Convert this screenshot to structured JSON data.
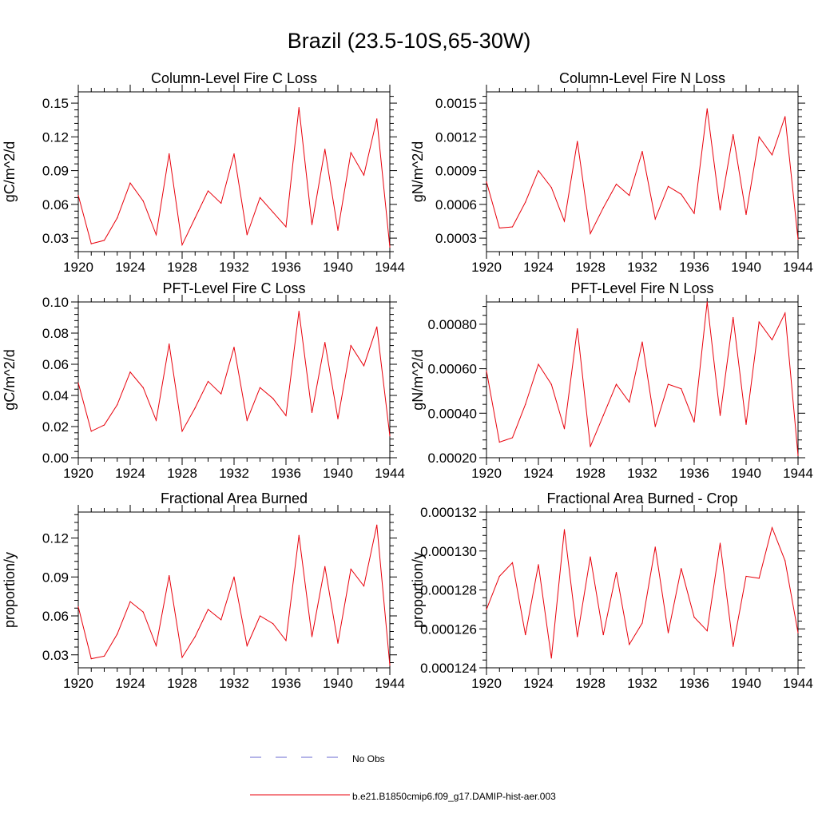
{
  "page_title": "Brazil (23.5-10S,65-30W)",
  "legend": [
    {
      "label": "No Obs",
      "color": "#6a6ad0",
      "style": "dashed"
    },
    {
      "label": "b.e21.B1850cmip6.f09_g17.DAMIP-hist-aer.003",
      "color": "#e8000b",
      "style": "solid"
    }
  ],
  "colors": {
    "series": "#e8000b",
    "axis": "#000000"
  },
  "chart_data": [
    {
      "type": "line",
      "title": "Column-Level Fire C Loss",
      "ylabel": "gC/m^2/d",
      "xlim": [
        1920,
        1944
      ],
      "ylim": [
        0.018,
        0.16
      ],
      "xticks": [
        1920,
        1924,
        1928,
        1932,
        1936,
        1940,
        1944
      ],
      "xtick_labels": [
        "1920",
        "1924",
        "1928",
        "1932",
        "1936",
        "1940",
        "1944"
      ],
      "yticks": [
        0.03,
        0.06,
        0.09,
        0.12,
        0.15
      ],
      "ytick_labels": [
        "0.03",
        "0.06",
        "0.09",
        "0.12",
        "0.15"
      ],
      "x": [
        1920,
        1921,
        1922,
        1923,
        1924,
        1925,
        1926,
        1927,
        1928,
        1929,
        1930,
        1931,
        1932,
        1933,
        1934,
        1935,
        1936,
        1937,
        1938,
        1939,
        1940,
        1941,
        1942,
        1943,
        1944
      ],
      "series": [
        {
          "values": [
            0.068,
            0.025,
            0.028,
            0.048,
            0.079,
            0.063,
            0.033,
            0.105,
            0.024,
            0.048,
            0.072,
            0.061,
            0.105,
            0.033,
            0.066,
            0.053,
            0.04,
            0.146,
            0.042,
            0.109,
            0.037,
            0.106,
            0.086,
            0.136,
            0.022
          ]
        }
      ]
    },
    {
      "type": "line",
      "title": "Column-Level Fire N Loss",
      "ylabel": "gN/m^2/d",
      "xlim": [
        1920,
        1944
      ],
      "ylim": [
        0.00018,
        0.0016
      ],
      "xticks": [
        1920,
        1924,
        1928,
        1932,
        1936,
        1940,
        1944
      ],
      "xtick_labels": [
        "1920",
        "1924",
        "1928",
        "1932",
        "1936",
        "1940",
        "1944"
      ],
      "yticks": [
        0.0003,
        0.0006,
        0.0009,
        0.0012,
        0.0015
      ],
      "ytick_labels": [
        "0.0003",
        "0.0006",
        "0.0009",
        "0.0012",
        "0.0015"
      ],
      "x": [
        1920,
        1921,
        1922,
        1923,
        1924,
        1925,
        1926,
        1927,
        1928,
        1929,
        1930,
        1931,
        1932,
        1933,
        1934,
        1935,
        1936,
        1937,
        1938,
        1939,
        1940,
        1941,
        1942,
        1943,
        1944
      ],
      "series": [
        {
          "values": [
            0.0008,
            0.00039,
            0.0004,
            0.00062,
            0.0009,
            0.00075,
            0.00045,
            0.00116,
            0.00034,
            0.00057,
            0.00078,
            0.00068,
            0.00107,
            0.00047,
            0.00076,
            0.00069,
            0.00052,
            0.00145,
            0.00055,
            0.00122,
            0.00051,
            0.0012,
            0.00104,
            0.00138,
            0.00029
          ]
        }
      ]
    },
    {
      "type": "line",
      "title": "PFT-Level Fire C Loss",
      "ylabel": "gC/m^2/d",
      "xlim": [
        1920,
        1944
      ],
      "ylim": [
        0.0,
        0.1
      ],
      "xticks": [
        1920,
        1924,
        1928,
        1932,
        1936,
        1940,
        1944
      ],
      "xtick_labels": [
        "1920",
        "1924",
        "1928",
        "1932",
        "1936",
        "1940",
        "1944"
      ],
      "yticks": [
        0.0,
        0.02,
        0.04,
        0.06,
        0.08,
        0.1
      ],
      "ytick_labels": [
        "0.00",
        "0.02",
        "0.04",
        "0.06",
        "0.08",
        "0.10"
      ],
      "x": [
        1920,
        1921,
        1922,
        1923,
        1924,
        1925,
        1926,
        1927,
        1928,
        1929,
        1930,
        1931,
        1932,
        1933,
        1934,
        1935,
        1936,
        1937,
        1938,
        1939,
        1940,
        1941,
        1942,
        1943,
        1944
      ],
      "series": [
        {
          "values": [
            0.048,
            0.017,
            0.021,
            0.034,
            0.055,
            0.045,
            0.024,
            0.073,
            0.017,
            0.032,
            0.049,
            0.041,
            0.071,
            0.024,
            0.045,
            0.038,
            0.027,
            0.094,
            0.029,
            0.074,
            0.025,
            0.072,
            0.059,
            0.084,
            0.014
          ]
        }
      ]
    },
    {
      "type": "line",
      "title": "PFT-Level Fire N Loss",
      "ylabel": "gN/m^2/d",
      "xlim": [
        1920,
        1944
      ],
      "ylim": [
        0.0002,
        0.0009
      ],
      "xticks": [
        1920,
        1924,
        1928,
        1932,
        1936,
        1940,
        1944
      ],
      "xtick_labels": [
        "1920",
        "1924",
        "1928",
        "1932",
        "1936",
        "1940",
        "1944"
      ],
      "yticks": [
        0.0002,
        0.0004,
        0.0006,
        0.0008
      ],
      "ytick_labels": [
        "0.00020",
        "0.00040",
        "0.00060",
        "0.00080"
      ],
      "x": [
        1920,
        1921,
        1922,
        1923,
        1924,
        1925,
        1926,
        1927,
        1928,
        1929,
        1930,
        1931,
        1932,
        1933,
        1934,
        1935,
        1936,
        1937,
        1938,
        1939,
        1940,
        1941,
        1942,
        1943,
        1944
      ],
      "series": [
        {
          "values": [
            0.00059,
            0.00027,
            0.00029,
            0.00044,
            0.00062,
            0.00053,
            0.00033,
            0.00078,
            0.00025,
            0.00039,
            0.00053,
            0.00045,
            0.00072,
            0.00034,
            0.00053,
            0.00051,
            0.00036,
            0.0009,
            0.00039,
            0.00083,
            0.00035,
            0.00081,
            0.00073,
            0.00085,
            0.00021
          ]
        }
      ]
    },
    {
      "type": "line",
      "title": "Fractional Area Burned",
      "ylabel": "proportion/y",
      "xlim": [
        1920,
        1944
      ],
      "ylim": [
        0.02,
        0.14
      ],
      "xticks": [
        1920,
        1924,
        1928,
        1932,
        1936,
        1940,
        1944
      ],
      "xtick_labels": [
        "1920",
        "1924",
        "1928",
        "1932",
        "1936",
        "1940",
        "1944"
      ],
      "yticks": [
        0.03,
        0.06,
        0.09,
        0.12
      ],
      "ytick_labels": [
        "0.03",
        "0.06",
        "0.09",
        "0.12"
      ],
      "x": [
        1920,
        1921,
        1922,
        1923,
        1924,
        1925,
        1926,
        1927,
        1928,
        1929,
        1930,
        1931,
        1932,
        1933,
        1934,
        1935,
        1936,
        1937,
        1938,
        1939,
        1940,
        1941,
        1942,
        1943,
        1944
      ],
      "series": [
        {
          "values": [
            0.067,
            0.027,
            0.029,
            0.046,
            0.071,
            0.063,
            0.037,
            0.091,
            0.028,
            0.044,
            0.065,
            0.057,
            0.09,
            0.037,
            0.06,
            0.054,
            0.041,
            0.122,
            0.044,
            0.098,
            0.039,
            0.096,
            0.083,
            0.13,
            0.022
          ]
        }
      ]
    },
    {
      "type": "line",
      "title": "Fractional Area Burned - Crop",
      "ylabel": "proportion/y",
      "xlim": [
        1920,
        1944
      ],
      "ylim": [
        0.000124,
        0.000132
      ],
      "xticks": [
        1920,
        1924,
        1928,
        1932,
        1936,
        1940,
        1944
      ],
      "xtick_labels": [
        "1920",
        "1924",
        "1928",
        "1932",
        "1936",
        "1940",
        "1944"
      ],
      "yticks": [
        0.000124,
        0.000126,
        0.000128,
        0.00013,
        0.000132
      ],
      "ytick_labels": [
        "0.000124",
        "0.000126",
        "0.000128",
        "0.000130",
        "0.000132"
      ],
      "x": [
        1920,
        1921,
        1922,
        1923,
        1924,
        1925,
        1926,
        1927,
        1928,
        1929,
        1930,
        1931,
        1932,
        1933,
        1934,
        1935,
        1936,
        1937,
        1938,
        1939,
        1940,
        1941,
        1942,
        1943,
        1944
      ],
      "series": [
        {
          "values": [
            0.000127,
            0.0001287,
            0.0001294,
            0.0001257,
            0.0001293,
            0.0001245,
            0.0001311,
            0.0001256,
            0.0001297,
            0.0001257,
            0.0001289,
            0.0001252,
            0.0001263,
            0.0001302,
            0.0001258,
            0.0001291,
            0.0001266,
            0.0001259,
            0.0001304,
            0.0001251,
            0.0001287,
            0.0001286,
            0.0001312,
            0.0001295,
            0.0001258
          ]
        }
      ]
    }
  ]
}
